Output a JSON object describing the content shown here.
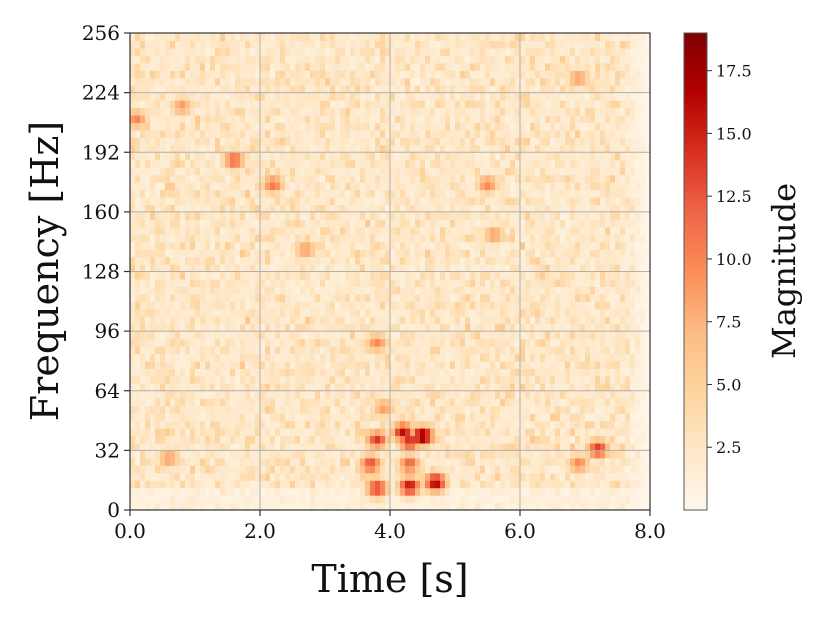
{
  "chart_data": {
    "type": "heatmap",
    "title": "",
    "xlabel": "Time [s]",
    "ylabel": "Frequency [Hz]",
    "xlim": [
      0.0,
      8.0
    ],
    "ylim": [
      0,
      256
    ],
    "xticks": [
      "0.0",
      "2.0",
      "4.0",
      "6.0",
      "8.0"
    ],
    "yticks": [
      "0",
      "32",
      "64",
      "96",
      "128",
      "160",
      "192",
      "224",
      "256"
    ],
    "grid": true,
    "colormap": "OrRd",
    "colors": [
      "#fff7ec",
      "#fee8c8",
      "#fdd49e",
      "#fdbb84",
      "#fc8d59",
      "#ef6548",
      "#d7301f",
      "#b30000",
      "#7f0000"
    ],
    "colorbar": {
      "label": "Magnitude",
      "range": [
        0,
        19
      ],
      "ticks": [
        "2.5",
        "5.0",
        "7.5",
        "10.0",
        "12.5",
        "15.0",
        "17.5"
      ]
    },
    "background_magnitude": 3.5,
    "active_time_range": [
      0.0,
      7.6
    ],
    "hotspots": [
      {
        "t": 0.1,
        "f": 210,
        "magnitude": 10
      },
      {
        "t": 0.8,
        "f": 217,
        "magnitude": 9
      },
      {
        "t": 1.6,
        "f": 188,
        "magnitude": 12
      },
      {
        "t": 2.2,
        "f": 175,
        "magnitude": 11
      },
      {
        "t": 0.6,
        "f": 28,
        "magnitude": 9
      },
      {
        "t": 3.8,
        "f": 38,
        "magnitude": 14
      },
      {
        "t": 4.2,
        "f": 42,
        "magnitude": 16
      },
      {
        "t": 4.5,
        "f": 40,
        "magnitude": 19
      },
      {
        "t": 4.3,
        "f": 37,
        "magnitude": 15
      },
      {
        "t": 3.7,
        "f": 25,
        "magnitude": 13
      },
      {
        "t": 4.3,
        "f": 25,
        "magnitude": 12
      },
      {
        "t": 3.8,
        "f": 12,
        "magnitude": 14
      },
      {
        "t": 4.3,
        "f": 13,
        "magnitude": 16
      },
      {
        "t": 4.7,
        "f": 15,
        "magnitude": 17
      },
      {
        "t": 3.8,
        "f": 90,
        "magnitude": 10
      },
      {
        "t": 3.9,
        "f": 55,
        "magnitude": 9
      },
      {
        "t": 7.2,
        "f": 33,
        "magnitude": 14
      },
      {
        "t": 6.9,
        "f": 25,
        "magnitude": 10
      },
      {
        "t": 5.5,
        "f": 175,
        "magnitude": 10
      },
      {
        "t": 6.9,
        "f": 232,
        "magnitude": 9
      },
      {
        "t": 5.6,
        "f": 148,
        "magnitude": 9
      },
      {
        "t": 2.7,
        "f": 140,
        "magnitude": 9
      }
    ]
  }
}
